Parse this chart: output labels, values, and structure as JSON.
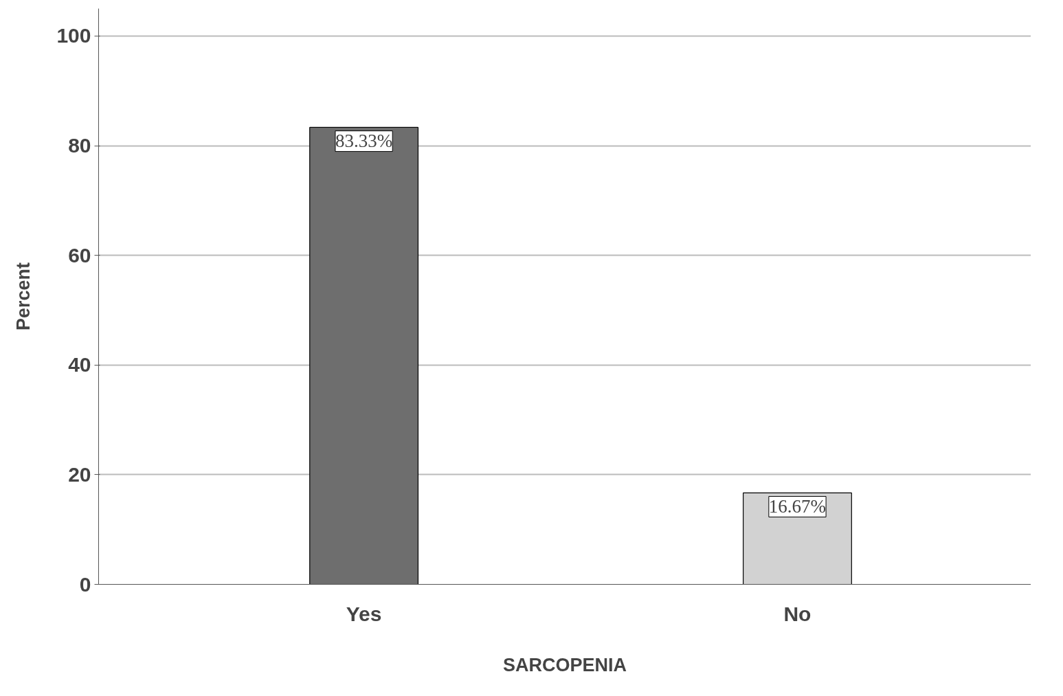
{
  "chart_data": {
    "type": "bar",
    "xlabel": "SARCOPENIA",
    "ylabel": "Percent",
    "categories": [
      "Yes",
      "No"
    ],
    "values": [
      83.33,
      16.67
    ],
    "colors": [
      "#6e6e6e",
      "#d2d2d2"
    ],
    "value_labels": [
      "83.33%",
      "16.67%"
    ],
    "ylim": [
      0,
      105
    ],
    "yticks": [
      0,
      20,
      40,
      60,
      80,
      100
    ],
    "grid": "y"
  }
}
